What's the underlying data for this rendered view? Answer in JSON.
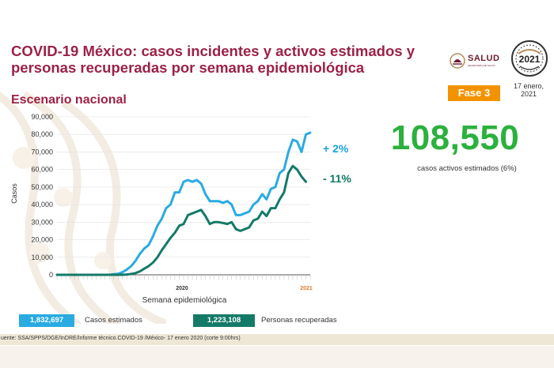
{
  "header": {
    "title": "COVID-19 México: casos incidentes y activos estimados y personas recuperadas por semana epidemiológica",
    "subtitle": "Escenario nacional",
    "logo_text": "SALUD",
    "logo_subtext": "SECRETARÍA DE SALUD",
    "seal_year": "2021",
    "date": "17 enero, 2021",
    "phase_badge": "Fase 3"
  },
  "kpi": {
    "active_estimated": "108,550",
    "active_caption": "casos activos estimados (6%)"
  },
  "trend_labels": {
    "estimated_change": "+ 2%",
    "recovered_change": "- 11%"
  },
  "legend": {
    "estimated_total": "1,832,697",
    "estimated_label": "Casos estimados",
    "recovered_total": "1,223,108",
    "recovered_label": "Personas recuperadas"
  },
  "footer": {
    "source": "uente: SSA/SPPS/DGE/InDRE/Informe técnico.COVID-19 /México- 17 enero 2020 (corte 9:00hrs)"
  },
  "colors": {
    "title": "#9b2247",
    "estimated": "#29abe2",
    "recovered": "#147a68",
    "kpi": "#2bb13d",
    "badge": "#f39200"
  },
  "chart_data": {
    "type": "line",
    "title": "",
    "xlabel": "Semana epidemiológica",
    "ylabel": "Casos",
    "ylim": [
      0,
      90000
    ],
    "yticks": [
      "0",
      "10,000",
      "20,000",
      "30,000",
      "40,000",
      "50,000",
      "60,000",
      "70,000",
      "80,000",
      "90,000"
    ],
    "year_labels": [
      "2020",
      "2021"
    ],
    "series": [
      {
        "name": "Casos estimados",
        "values": [
          0,
          0,
          0,
          0,
          0,
          0,
          0,
          0,
          0,
          0,
          0,
          0,
          0,
          300,
          600,
          1500,
          3000,
          5000,
          8000,
          12000,
          15000,
          17000,
          22000,
          28000,
          32000,
          38000,
          40000,
          47000,
          47000,
          53000,
          54000,
          53000,
          54000,
          52000,
          46000,
          42000,
          42000,
          42000,
          41000,
          42000,
          40000,
          34000,
          34000,
          35000,
          36000,
          40000,
          42000,
          46000,
          43000,
          49000,
          50000,
          58000,
          60000,
          70000,
          77000,
          76000,
          70000,
          80000,
          81000
        ]
      },
      {
        "name": "Personas recuperadas",
        "values": [
          0,
          0,
          0,
          0,
          0,
          0,
          0,
          0,
          0,
          0,
          0,
          0,
          0,
          0,
          0,
          0,
          200,
          500,
          1000,
          2000,
          3500,
          5000,
          7000,
          10000,
          14000,
          17500,
          21000,
          24000,
          28000,
          29000,
          34000,
          35000,
          36000,
          37000,
          33500,
          29000,
          30000,
          30000,
          29500,
          29000,
          30000,
          26000,
          25000,
          26000,
          27000,
          31000,
          32000,
          36000,
          33500,
          38000,
          38000,
          43000,
          47000,
          58000,
          62000,
          60000,
          56000,
          53000
        ]
      }
    ]
  }
}
